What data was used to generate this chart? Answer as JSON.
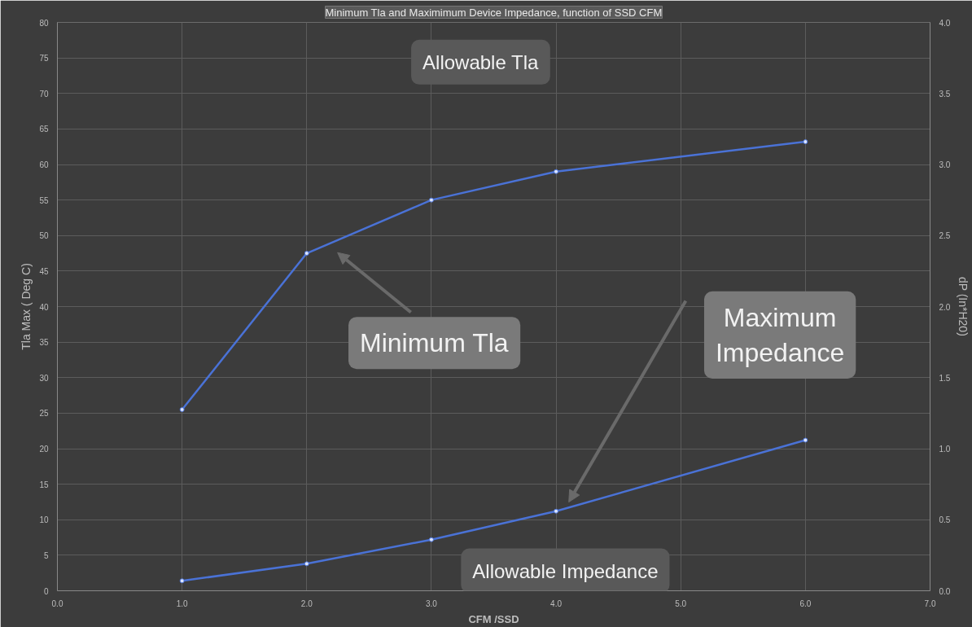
{
  "chart_data": {
    "type": "line",
    "title": "Minimum Tla and Maximimum Device Impedance, function of SSD CFM",
    "xlabel": "CFM /SSD",
    "ylabel": "Tla Max ( Deg C)",
    "y2label": "dP (In*H20)",
    "x": [
      1,
      2,
      3,
      4,
      6
    ],
    "series": [
      {
        "color": "#4a72d6",
        "values": [
          25.5,
          47.5,
          55,
          59,
          63.2
        ]
      },
      {
        "color": "#4a72d6",
        "values": [
          0.07,
          0.19,
          0.36,
          0.56,
          1.06
        ],
        "axis": "y2"
      }
    ],
    "xlim": [
      0,
      7
    ],
    "xticks": [
      {
        "value": 0,
        "label": "0.0"
      },
      {
        "value": 1,
        "label": "1.0"
      },
      {
        "value": 2,
        "label": "2.0"
      },
      {
        "value": 3,
        "label": "3.0"
      },
      {
        "value": 4,
        "label": "4.0"
      },
      {
        "value": 5,
        "label": "5.0"
      },
      {
        "value": 6,
        "label": "6.0"
      },
      {
        "value": 7,
        "label": "7.0"
      }
    ],
    "ylim": [
      0,
      80
    ],
    "yticks": [
      0,
      5,
      10,
      15,
      20,
      25,
      30,
      35,
      40,
      45,
      50,
      55,
      60,
      65,
      70,
      75,
      80
    ],
    "y2lim": [
      0,
      4
    ],
    "y2ticks": [
      {
        "value": 0,
        "label": "0.0"
      },
      {
        "value": 0.5,
        "label": "0.5"
      },
      {
        "value": 1,
        "label": "1.0"
      },
      {
        "value": 1.5,
        "label": "1.5"
      },
      {
        "value": 2,
        "label": "2.0"
      },
      {
        "value": 2.5,
        "label": "2.5"
      },
      {
        "value": 3,
        "label": "3.0"
      },
      {
        "value": 3.5,
        "label": "3.5"
      },
      {
        "value": 4,
        "label": "4.0"
      }
    ],
    "grid": true,
    "marker": "circle",
    "line_style": "solid",
    "annotations": [
      "Allowable Tla",
      "Minimum Tla",
      "Maximum Impedance",
      "Allowable Impedance"
    ]
  }
}
